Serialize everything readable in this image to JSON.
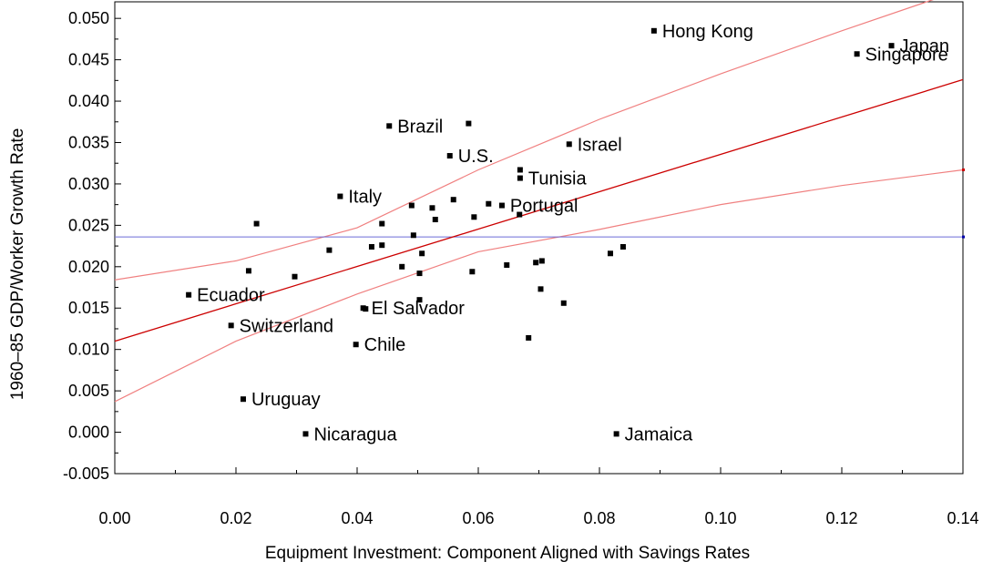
{
  "chart_data": {
    "type": "scatter",
    "title": "",
    "xlabel": "Equipment Investment: Component Aligned with Savings Rates",
    "ylabel": "1960–85 GDP/Worker Growth Rate",
    "xlim": [
      0.0,
      0.14
    ],
    "ylim": [
      -0.005,
      0.052
    ],
    "x_ticks": [
      "0.00",
      "0.02",
      "0.04",
      "0.06",
      "0.08",
      "0.10",
      "0.12",
      "0.14"
    ],
    "y_ticks": [
      "-0.005",
      "0.000",
      "0.005",
      "0.010",
      "0.015",
      "0.020",
      "0.025",
      "0.030",
      "0.035",
      "0.040",
      "0.045",
      "0.050"
    ],
    "grid": false,
    "points": [
      {
        "x": 0.089,
        "y": 0.0485,
        "label": "Hong Kong"
      },
      {
        "x": 0.1282,
        "y": 0.0467,
        "label": "Japan"
      },
      {
        "x": 0.1225,
        "y": 0.0457,
        "label": "Singapore"
      },
      {
        "x": 0.0453,
        "y": 0.037,
        "label": "Brazil"
      },
      {
        "x": 0.0584,
        "y": 0.0373,
        "label": ""
      },
      {
        "x": 0.075,
        "y": 0.0348,
        "label": "Israel"
      },
      {
        "x": 0.0553,
        "y": 0.0334,
        "label": "U.S."
      },
      {
        "x": 0.0669,
        "y": 0.0317,
        "label": ""
      },
      {
        "x": 0.0669,
        "y": 0.0307,
        "label": "Tunisia"
      },
      {
        "x": 0.0372,
        "y": 0.0285,
        "label": "Italy"
      },
      {
        "x": 0.049,
        "y": 0.0274,
        "label": ""
      },
      {
        "x": 0.0524,
        "y": 0.0271,
        "label": ""
      },
      {
        "x": 0.0559,
        "y": 0.0281,
        "label": ""
      },
      {
        "x": 0.0617,
        "y": 0.0276,
        "label": ""
      },
      {
        "x": 0.0639,
        "y": 0.0274,
        "label": "Portugal"
      },
      {
        "x": 0.0668,
        "y": 0.0263,
        "label": ""
      },
      {
        "x": 0.0593,
        "y": 0.026,
        "label": ""
      },
      {
        "x": 0.0529,
        "y": 0.0257,
        "label": ""
      },
      {
        "x": 0.0234,
        "y": 0.0252,
        "label": ""
      },
      {
        "x": 0.0441,
        "y": 0.0252,
        "label": ""
      },
      {
        "x": 0.0493,
        "y": 0.0238,
        "label": ""
      },
      {
        "x": 0.0441,
        "y": 0.0226,
        "label": ""
      },
      {
        "x": 0.0424,
        "y": 0.0224,
        "label": ""
      },
      {
        "x": 0.0354,
        "y": 0.022,
        "label": ""
      },
      {
        "x": 0.0507,
        "y": 0.0216,
        "label": ""
      },
      {
        "x": 0.0839,
        "y": 0.0224,
        "label": ""
      },
      {
        "x": 0.0818,
        "y": 0.0216,
        "label": ""
      },
      {
        "x": 0.0705,
        "y": 0.0207,
        "label": ""
      },
      {
        "x": 0.0695,
        "y": 0.0205,
        "label": ""
      },
      {
        "x": 0.0647,
        "y": 0.0202,
        "label": ""
      },
      {
        "x": 0.0474,
        "y": 0.02,
        "label": ""
      },
      {
        "x": 0.0221,
        "y": 0.0195,
        "label": ""
      },
      {
        "x": 0.0503,
        "y": 0.0192,
        "label": ""
      },
      {
        "x": 0.059,
        "y": 0.0194,
        "label": ""
      },
      {
        "x": 0.0297,
        "y": 0.0188,
        "label": ""
      },
      {
        "x": 0.0703,
        "y": 0.0173,
        "label": ""
      },
      {
        "x": 0.0122,
        "y": 0.0166,
        "label": "Ecuador"
      },
      {
        "x": 0.0503,
        "y": 0.016,
        "label": ""
      },
      {
        "x": 0.0741,
        "y": 0.0156,
        "label": ""
      },
      {
        "x": 0.041,
        "y": 0.015,
        "label": "El Salvador"
      },
      {
        "x": 0.0414,
        "y": 0.0149,
        "label": ""
      },
      {
        "x": 0.0192,
        "y": 0.0129,
        "label": "Switzerland"
      },
      {
        "x": 0.0683,
        "y": 0.0114,
        "label": ""
      },
      {
        "x": 0.0398,
        "y": 0.0106,
        "label": "Chile"
      },
      {
        "x": 0.0212,
        "y": 0.004,
        "label": "Uruguay"
      },
      {
        "x": 0.0315,
        "y": -0.0002,
        "label": "Nicaragua"
      },
      {
        "x": 0.0828,
        "y": -0.0002,
        "label": "Jamaica"
      }
    ],
    "fit_line": {
      "x": [
        0.0,
        0.14
      ],
      "y": [
        0.011,
        0.0426
      ]
    },
    "ci_upper": {
      "x": [
        0.0,
        0.02,
        0.04,
        0.06,
        0.08,
        0.1,
        0.12,
        0.14
      ],
      "y": [
        0.0184,
        0.0207,
        0.0247,
        0.0317,
        0.0378,
        0.0433,
        0.0485,
        0.0535
      ]
    },
    "ci_lower": {
      "x": [
        0.0,
        0.02,
        0.04,
        0.06,
        0.08,
        0.1,
        0.12,
        0.14
      ],
      "y": [
        0.0037,
        0.011,
        0.0167,
        0.0218,
        0.0245,
        0.0275,
        0.0298,
        0.0317
      ]
    },
    "mean_line": {
      "y": 0.0236
    },
    "colors": {
      "fit": "#cc0000",
      "ci": "#f08080",
      "mean": "#6b6bd6",
      "points": "#000000"
    }
  }
}
